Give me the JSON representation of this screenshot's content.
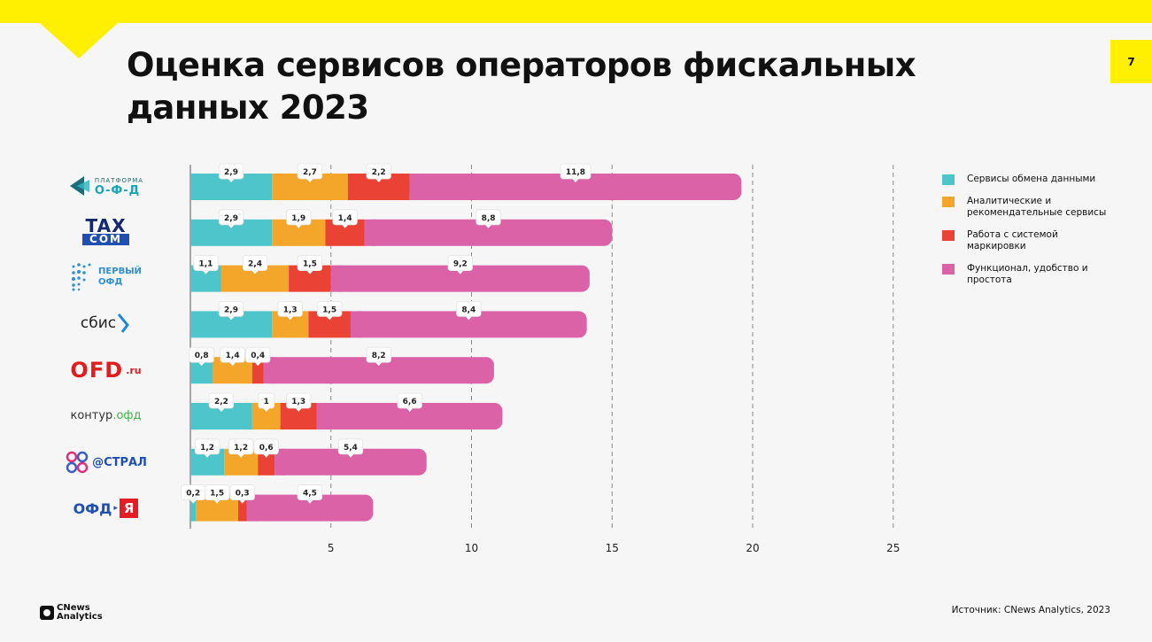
{
  "title": "Оценка сервисов операторов фискальных данных 2023",
  "page_number": "7",
  "source": "Источник: CNews Analytics, 2023",
  "brand": "CNews Analytics",
  "logos": {
    "platforma_ofd": {
      "top": "ПЛАТФОРМА",
      "bottom": "О-Ф-Д"
    },
    "taxcom": {
      "top": "TAX",
      "bottom": "COM"
    },
    "pervy_ofd": {
      "top": "ПЕРВЫЙ",
      "bottom": "ОФД"
    },
    "sbis": "сбис",
    "ofd_ru": {
      "main": "OFD",
      "suffix": ".ru"
    },
    "kontur": {
      "main": "контур",
      "suffix": ".офд"
    },
    "astral": "@СТРАЛ",
    "ofd_ya": {
      "main": "ОФД",
      "ya": "Я"
    }
  },
  "chart_data": {
    "type": "bar",
    "orientation": "horizontal",
    "stacked": true,
    "title": "Оценка сервисов операторов фискальных данных 2023",
    "categories": [
      "Платформа ОФД",
      "Такском",
      "Первый ОФД",
      "СБИС",
      "OFD.ru",
      "Контур.ОФД",
      "Астрал",
      "ОФД Я"
    ],
    "series": [
      {
        "name": "Сервисы обмена данными",
        "color": "#4ec5cb",
        "values": [
          2.9,
          2.9,
          1.1,
          2.9,
          0.8,
          2.2,
          1.2,
          0.2
        ]
      },
      {
        "name": "Аналитические и рекомендательные сервисы",
        "color": "#f4a62a",
        "values": [
          2.7,
          1.9,
          2.4,
          1.3,
          1.4,
          1,
          1.2,
          1.5
        ]
      },
      {
        "name": "Работа с системой маркировки",
        "color": "#ea4335",
        "values": [
          2.2,
          1.4,
          1.5,
          1.5,
          0.4,
          1.3,
          0.6,
          0.3
        ]
      },
      {
        "name": "Функционал, удобство и простота",
        "color": "#dc62a8",
        "values": [
          11.8,
          8.8,
          9.2,
          8.4,
          8.2,
          6.6,
          5.4,
          4.5
        ]
      }
    ],
    "value_labels": [
      [
        "2,9",
        "2,7",
        "2,2",
        "11,8"
      ],
      [
        "2,9",
        "1,9",
        "1,4",
        "8,8"
      ],
      [
        "1,1",
        "2,4",
        "1,5",
        "9,2"
      ],
      [
        "2,9",
        "1,3",
        "1,5",
        "8,4"
      ],
      [
        "0,8",
        "1,4",
        "0,4",
        "8,2"
      ],
      [
        "2,2",
        "1",
        "1,3",
        "6,6"
      ],
      [
        "1,2",
        "1,2",
        "0,6",
        "5,4"
      ],
      [
        "0,2",
        "1,5",
        "0,3",
        "4,5"
      ]
    ],
    "xticks": [
      5,
      10,
      15,
      20,
      25
    ],
    "xlim": [
      0,
      25
    ],
    "grid": "vertical dashed",
    "legend_position": "right"
  }
}
